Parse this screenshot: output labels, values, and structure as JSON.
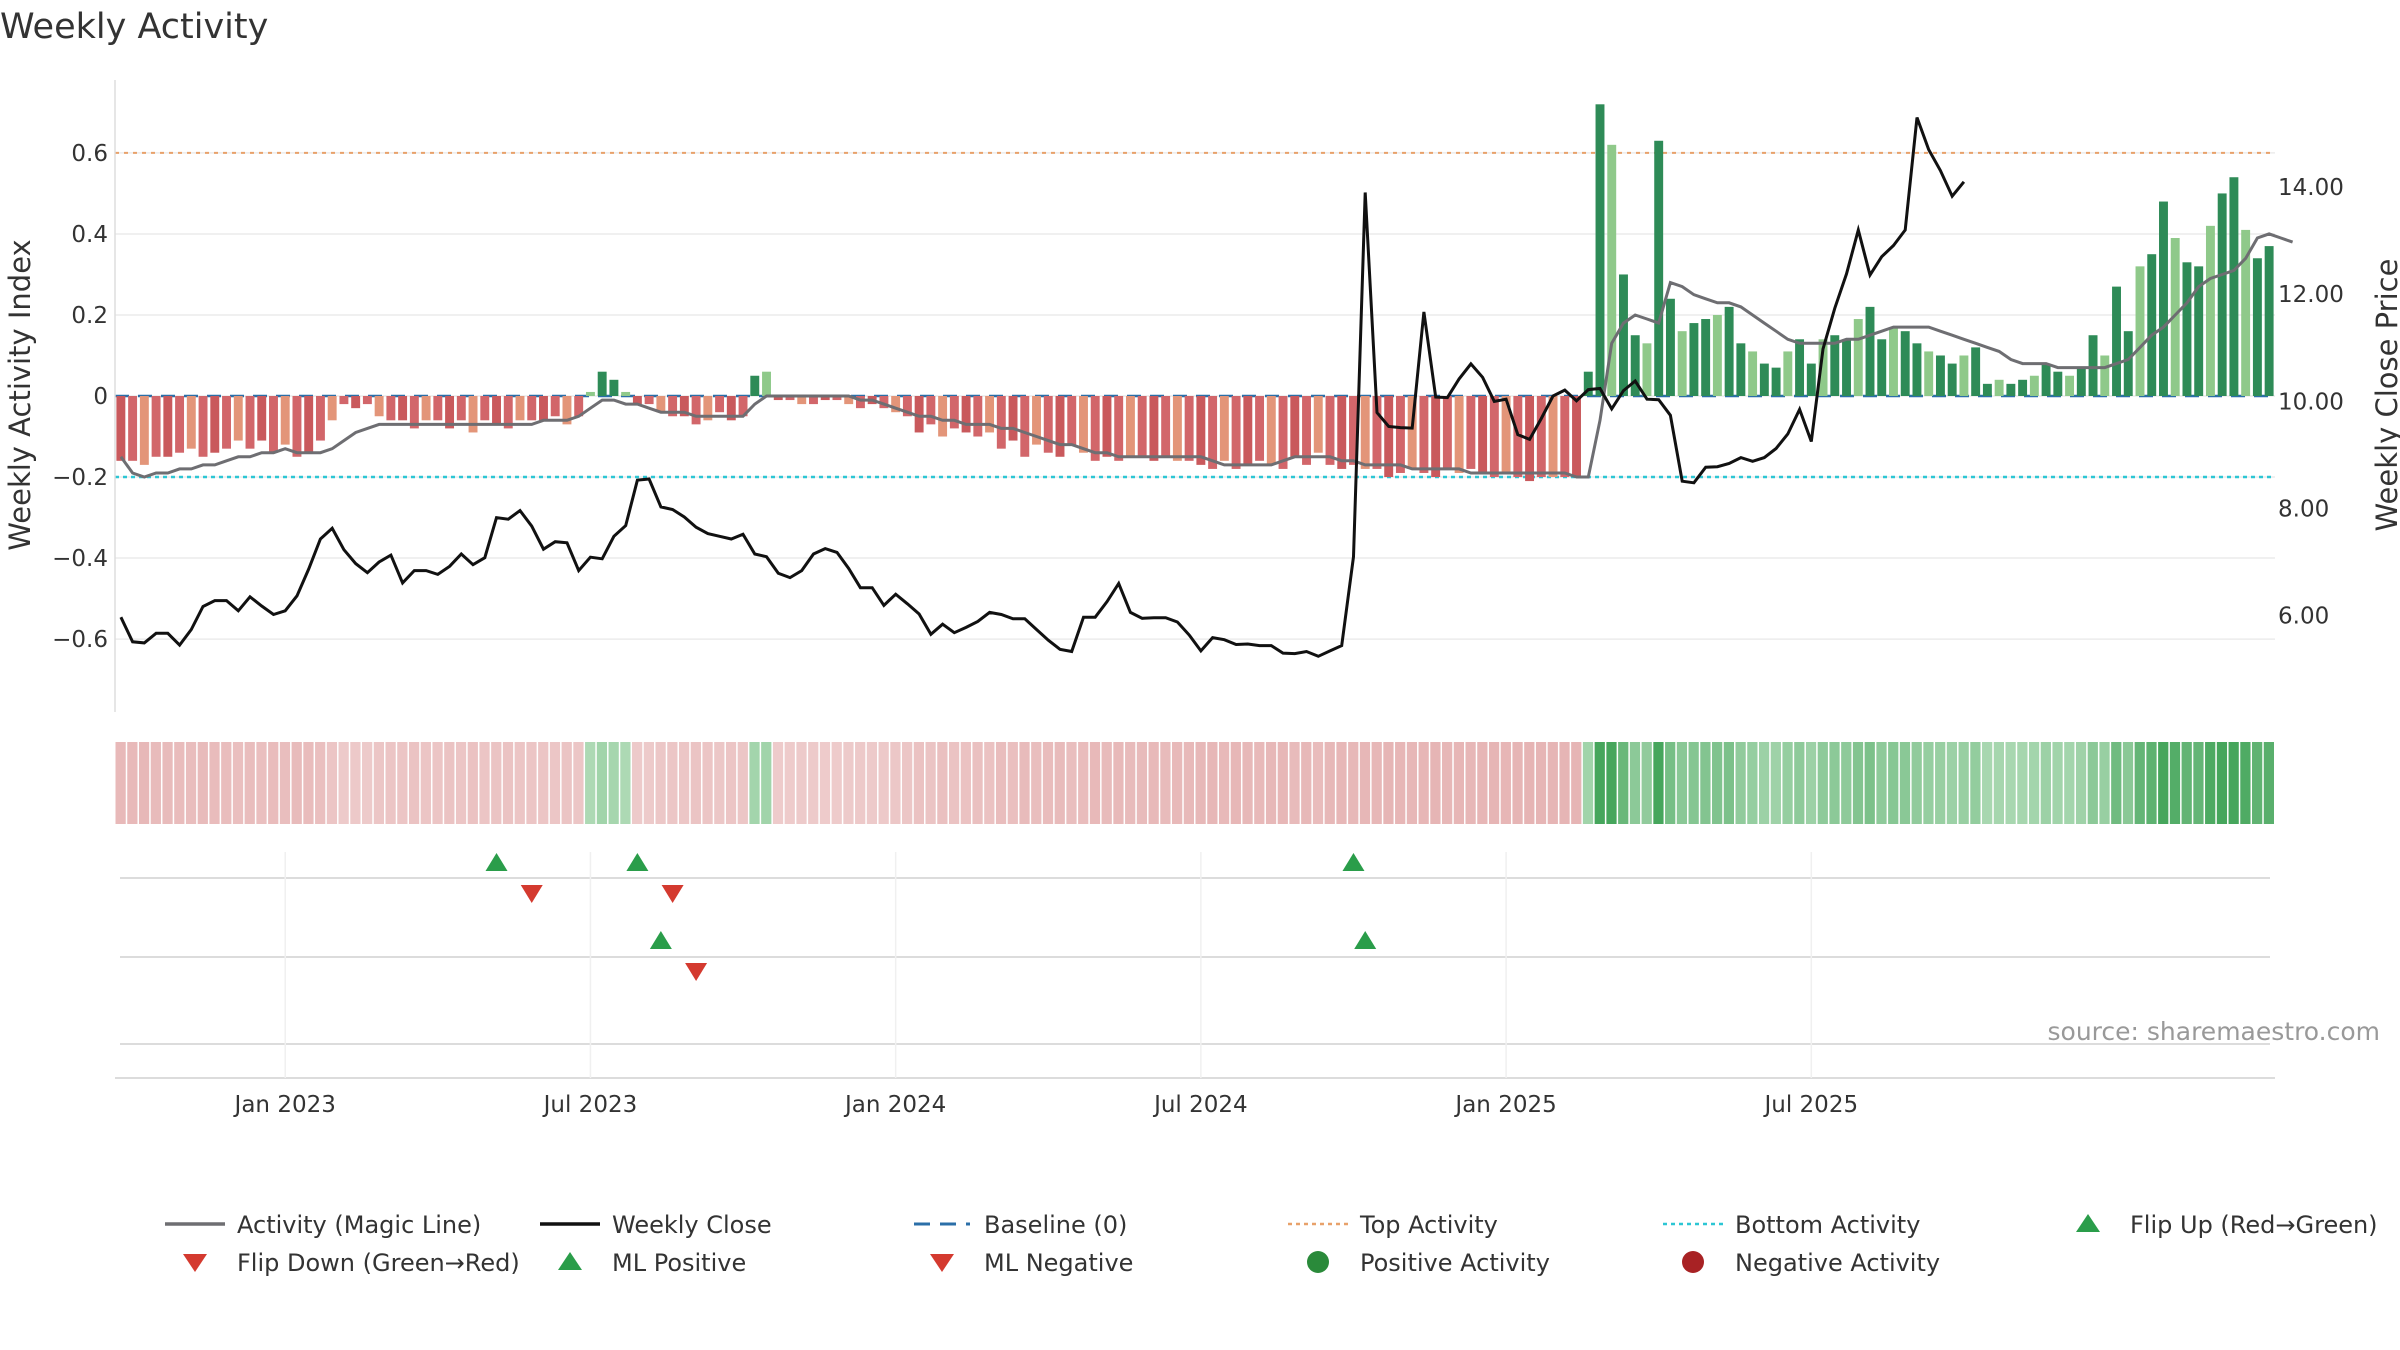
{
  "chart_data": {
    "type": "bar",
    "title": "Weekly Activity",
    "ylabel": "Weekly Activity Index",
    "y2label": "Weekly Close Price",
    "source": "source: sharemaestro.com",
    "ylim": [
      -0.78,
      0.78
    ],
    "y2lim": [
      4.2,
      16.0
    ],
    "yticks": [
      {
        "v": 0.6,
        "label": "0.6"
      },
      {
        "v": 0.4,
        "label": "0.4"
      },
      {
        "v": 0.2,
        "label": "0.2"
      },
      {
        "v": 0,
        "label": "0"
      },
      {
        "v": -0.2,
        "label": "−0.2"
      },
      {
        "v": -0.4,
        "label": "−0.4"
      },
      {
        "v": -0.6,
        "label": "−0.6"
      }
    ],
    "y2ticks": [
      {
        "v": 14,
        "label": "14.00"
      },
      {
        "v": 12,
        "label": "12.00"
      },
      {
        "v": 10,
        "label": "10.00"
      },
      {
        "v": 8,
        "label": "8.00"
      },
      {
        "v": 6,
        "label": "6.00"
      }
    ],
    "xticks": [
      {
        "week": 14,
        "label": "Jan 2023"
      },
      {
        "week": 40,
        "label": "Jul 2023"
      },
      {
        "week": 66,
        "label": "Jan 2024"
      },
      {
        "week": 92,
        "label": "Jul 2024"
      },
      {
        "week": 118,
        "label": "Jan 2025"
      },
      {
        "week": 144,
        "label": "Jul 2025"
      }
    ],
    "top_activity": 0.6,
    "bottom_activity": -0.2,
    "activity": [
      -0.16,
      -0.16,
      -0.17,
      -0.15,
      -0.15,
      -0.14,
      -0.13,
      -0.15,
      -0.14,
      -0.13,
      -0.11,
      -0.13,
      -0.11,
      -0.14,
      -0.12,
      -0.15,
      -0.14,
      -0.11,
      -0.06,
      -0.02,
      -0.03,
      -0.02,
      -0.05,
      -0.06,
      -0.06,
      -0.08,
      -0.06,
      -0.06,
      -0.08,
      -0.06,
      -0.09,
      -0.06,
      -0.07,
      -0.08,
      -0.06,
      -0.06,
      -0.06,
      -0.05,
      -0.07,
      -0.05,
      0.01,
      0.06,
      0.04,
      0.01,
      -0.02,
      -0.02,
      -0.04,
      -0.05,
      -0.05,
      -0.07,
      -0.06,
      -0.04,
      -0.06,
      -0.05,
      0.05,
      0.06,
      -0.01,
      -0.01,
      -0.02,
      -0.02,
      -0.01,
      -0.01,
      -0.02,
      -0.03,
      -0.02,
      -0.03,
      -0.04,
      -0.05,
      -0.09,
      -0.07,
      -0.1,
      -0.08,
      -0.09,
      -0.1,
      -0.09,
      -0.13,
      -0.11,
      -0.15,
      -0.12,
      -0.14,
      -0.15,
      -0.12,
      -0.14,
      -0.16,
      -0.15,
      -0.16,
      -0.15,
      -0.15,
      -0.16,
      -0.15,
      -0.16,
      -0.16,
      -0.17,
      -0.18,
      -0.16,
      -0.18,
      -0.17,
      -0.16,
      -0.17,
      -0.18,
      -0.15,
      -0.17,
      -0.14,
      -0.17,
      -0.18,
      -0.17,
      -0.18,
      -0.18,
      -0.2,
      -0.19,
      -0.18,
      -0.19,
      -0.2,
      -0.18,
      -0.19,
      -0.18,
      -0.19,
      -0.2,
      -0.19,
      -0.2,
      -0.21,
      -0.2,
      -0.2,
      -0.2,
      -0.2,
      0.06,
      0.72,
      0.62,
      0.3,
      0.15,
      0.13,
      0.63,
      0.24,
      0.16,
      0.18,
      0.19,
      0.2,
      0.22,
      0.13,
      0.11,
      0.08,
      0.07,
      0.11,
      0.14,
      0.08,
      0.14,
      0.15,
      0.14,
      0.19,
      0.22,
      0.14,
      0.17,
      0.16,
      0.13,
      0.11,
      0.1,
      0.08,
      0.1,
      0.12,
      0.03,
      0.04,
      0.03,
      0.04,
      0.05,
      0.08,
      0.06,
      0.05,
      0.07,
      0.15,
      0.1,
      0.27,
      0.16,
      0.32,
      0.35,
      0.48,
      0.39,
      0.33,
      0.32,
      0.42,
      0.5,
      0.54,
      0.41,
      0.34,
      0.37
    ],
    "magic_line": [
      -0.15,
      -0.19,
      -0.2,
      -0.19,
      -0.19,
      -0.18,
      -0.18,
      -0.17,
      -0.17,
      -0.16,
      -0.15,
      -0.15,
      -0.14,
      -0.14,
      -0.13,
      -0.14,
      -0.14,
      -0.14,
      -0.13,
      -0.11,
      -0.09,
      -0.08,
      -0.07,
      -0.07,
      -0.07,
      -0.07,
      -0.07,
      -0.07,
      -0.07,
      -0.07,
      -0.07,
      -0.07,
      -0.07,
      -0.07,
      -0.07,
      -0.07,
      -0.06,
      -0.06,
      -0.06,
      -0.05,
      -0.03,
      -0.01,
      -0.01,
      -0.02,
      -0.02,
      -0.03,
      -0.04,
      -0.04,
      -0.04,
      -0.05,
      -0.05,
      -0.05,
      -0.05,
      -0.05,
      -0.02,
      0,
      0,
      0,
      0,
      0,
      0,
      0,
      0,
      -0.01,
      -0.01,
      -0.02,
      -0.03,
      -0.04,
      -0.05,
      -0.05,
      -0.06,
      -0.06,
      -0.07,
      -0.07,
      -0.07,
      -0.08,
      -0.08,
      -0.09,
      -0.1,
      -0.11,
      -0.12,
      -0.12,
      -0.13,
      -0.14,
      -0.14,
      -0.15,
      -0.15,
      -0.15,
      -0.15,
      -0.15,
      -0.15,
      -0.15,
      -0.15,
      -0.16,
      -0.17,
      -0.17,
      -0.17,
      -0.17,
      -0.17,
      -0.16,
      -0.15,
      -0.15,
      -0.15,
      -0.15,
      -0.16,
      -0.16,
      -0.17,
      -0.17,
      -0.17,
      -0.17,
      -0.18,
      -0.18,
      -0.18,
      -0.18,
      -0.18,
      -0.19,
      -0.19,
      -0.19,
      -0.19,
      -0.19,
      -0.19,
      -0.19,
      -0.19,
      -0.19,
      -0.2,
      -0.2,
      -0.06,
      0.13,
      0.18,
      0.2,
      0.19,
      0.18,
      0.28,
      0.27,
      0.25,
      0.24,
      0.23,
      0.23,
      0.22,
      0.2,
      0.18,
      0.16,
      0.14,
      0.13,
      0.13,
      0.13,
      0.13,
      0.14,
      0.14,
      0.15,
      0.16,
      0.17,
      0.17,
      0.17,
      0.17,
      0.16,
      0.15,
      0.14,
      0.13,
      0.12,
      0.11,
      0.09,
      0.08,
      0.08,
      0.08,
      0.07,
      0.07,
      0.07,
      0.07,
      0.07,
      0.08,
      0.09,
      0.12,
      0.15,
      0.17,
      0.2,
      0.23,
      0.27,
      0.29,
      0.3,
      0.31,
      0.34,
      0.39,
      0.4,
      0.39,
      0.38
    ],
    "weekly_close": [
      5.97,
      5.51,
      5.49,
      5.67,
      5.67,
      5.45,
      5.74,
      6.17,
      6.28,
      6.28,
      6.09,
      6.35,
      6.18,
      6.02,
      6.09,
      6.37,
      6.87,
      7.43,
      7.63,
      7.23,
      6.97,
      6.8,
      7.0,
      7.13,
      6.61,
      6.84,
      6.84,
      6.77,
      6.92,
      7.15,
      6.95,
      7.08,
      7.83,
      7.8,
      7.96,
      7.67,
      7.24,
      7.38,
      7.36,
      6.84,
      7.09,
      7.06,
      7.48,
      7.68,
      8.53,
      8.55,
      8.03,
      7.98,
      7.84,
      7.65,
      7.53,
      7.48,
      7.43,
      7.52,
      7.15,
      7.1,
      6.79,
      6.71,
      6.84,
      7.15,
      7.25,
      7.18,
      6.88,
      6.52,
      6.52,
      6.19,
      6.4,
      6.22,
      6.03,
      5.65,
      5.84,
      5.68,
      5.78,
      5.89,
      6.06,
      6.02,
      5.94,
      5.94,
      5.74,
      5.54,
      5.37,
      5.33,
      5.97,
      5.97,
      6.26,
      6.6,
      6.06,
      5.95,
      5.96,
      5.96,
      5.88,
      5.64,
      5.34,
      5.59,
      5.55,
      5.46,
      5.47,
      5.44,
      5.44,
      5.3,
      5.29,
      5.33,
      5.24,
      5.34,
      5.44,
      7.1,
      13.9,
      9.79,
      9.53,
      9.51,
      9.5,
      11.67,
      10.08,
      10.07,
      10.42,
      10.7,
      10.45,
      10.0,
      10.04,
      9.38,
      9.29,
      9.68,
      10.1,
      10.21,
      10.01,
      10.22,
      10.24,
      9.86,
      10.2,
      10.38,
      10.04,
      10.03,
      9.74,
      8.51,
      8.48,
      8.77,
      8.78,
      8.84,
      8.95,
      8.88,
      8.95,
      9.12,
      9.39,
      9.85,
      9.25,
      10.98,
      11.74,
      12.38,
      13.2,
      12.36,
      12.7,
      12.91,
      13.2,
      15.3,
      14.7,
      14.31,
      13.83,
      14.1
    ],
    "flip_up_weeks": [
      32,
      44,
      105
    ],
    "flip_down_weeks": [
      35,
      47
    ],
    "ml_positive_weeks": [
      46,
      106
    ],
    "ml_negative_weeks": [
      49
    ],
    "legend": [
      {
        "label": "Activity (Magic Line)",
        "kind": "line",
        "color": "#6e6e72"
      },
      {
        "label": "Weekly Close",
        "kind": "line",
        "color": "#111111"
      },
      {
        "label": "Baseline (0)",
        "kind": "dash",
        "color": "#2b6fa8"
      },
      {
        "label": "Top Activity",
        "kind": "dot",
        "color": "#e8a16a"
      },
      {
        "label": "Bottom Activity",
        "kind": "dot",
        "color": "#2cc6d4"
      },
      {
        "label": "Flip Up (Red→Green)",
        "kind": "tri-up",
        "color": "#2a9d4a"
      },
      {
        "label": "Flip Down (Green→Red)",
        "kind": "tri-down",
        "color": "#d43a2f"
      },
      {
        "label": "ML Positive",
        "kind": "tri-up",
        "color": "#2a9d4a"
      },
      {
        "label": "ML Negative",
        "kind": "tri-down",
        "color": "#d43a2f"
      },
      {
        "label": "Positive Activity",
        "kind": "circle",
        "color": "#2a8a3a"
      },
      {
        "label": "Negative Activity",
        "kind": "circle",
        "color": "#a82224"
      }
    ]
  }
}
